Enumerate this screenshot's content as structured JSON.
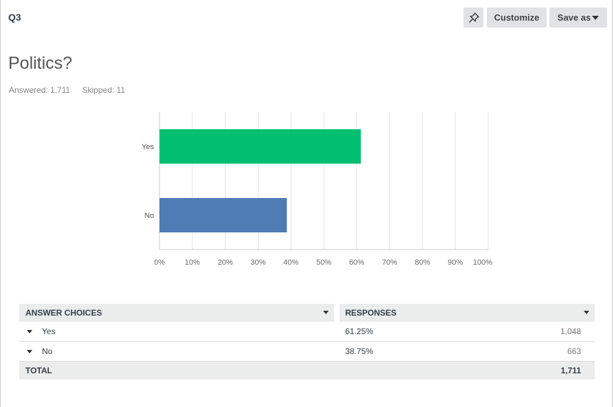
{
  "header": {
    "question_label": "Q3",
    "customize_label": "Customize",
    "save_as_label": "Save as"
  },
  "question": {
    "title": "Politics?",
    "answered": "Answered: 1,711",
    "skipped": "Skipped: 11"
  },
  "chart_data": {
    "type": "bar",
    "orientation": "horizontal",
    "categories": [
      "Yes",
      "No"
    ],
    "values": [
      61.25,
      38.75
    ],
    "colors": [
      "#00bf6f",
      "#507cb6"
    ],
    "xlim": [
      0,
      100
    ],
    "xticks": [
      "0%",
      "10%",
      "20%",
      "30%",
      "40%",
      "50%",
      "60%",
      "70%",
      "80%",
      "90%",
      "100%"
    ],
    "grid": true,
    "title": "",
    "xlabel": "",
    "ylabel": ""
  },
  "table": {
    "col_choices": "ANSWER CHOICES",
    "col_responses": "RESPONSES",
    "rows": [
      {
        "choice": "Yes",
        "percent": "61.25%",
        "count": "1,048"
      },
      {
        "choice": "No",
        "percent": "38.75%",
        "count": "663"
      }
    ],
    "total_label": "TOTAL",
    "total_count": "1,711"
  }
}
